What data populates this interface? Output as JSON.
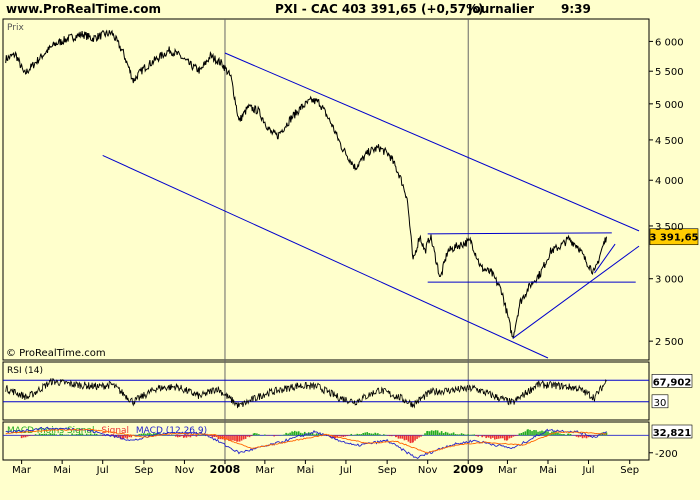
{
  "header": {
    "site": "www.ProRealTime.com",
    "instrument": "PXI - CAC 40",
    "quote": "3 391,65 (+0,57%)",
    "period": "Journalier",
    "time": "9:39"
  },
  "panels": {
    "price_label": "Prix",
    "watermark": "© ProRealTime.com",
    "rsi_label": "RSI (14)",
    "macd_label": "MACD moins Signal",
    "macd_signal_label": "Signal",
    "macd_line_label": "MACD (12,26,9)"
  },
  "colors": {
    "background": "#ffffcc",
    "price": "#000000",
    "trendline": "#0000cc",
    "rsi": "#000000",
    "rsi_levels": "#0000cc",
    "macd_pos": "#22aa22",
    "macd_neg": "#ee3333",
    "macd_line": "#2222cc",
    "signal_line": "#ff6600",
    "last_value_box": "#ffcc00"
  },
  "chart_data": [
    {
      "type": "line",
      "title": "PXI - CAC 40",
      "ylabel": "Prix",
      "yscale": "log",
      "ylim": [
        2380,
        6350
      ],
      "yticks": [
        "6 000",
        "5 500",
        "5 000",
        "4 500",
        "4 000",
        "3 500",
        "3 000",
        "2 500"
      ],
      "ytick_values": [
        6000,
        5500,
        5000,
        4500,
        4000,
        3500,
        3000,
        2500
      ],
      "xticks": [
        "Mar",
        "Mai",
        "Jul",
        "Sep",
        "Nov",
        "2008",
        "Mar",
        "Mai",
        "Jul",
        "Sep",
        "Nov",
        "2009",
        "Mar",
        "Mai",
        "Jul",
        "Sep"
      ],
      "xtick_dates": [
        "2007-03-01",
        "2007-05-01",
        "2007-07-01",
        "2007-09-01",
        "2007-11-01",
        "2008-01-01",
        "2008-03-01",
        "2008-05-01",
        "2008-07-01",
        "2008-09-01",
        "2008-11-01",
        "2009-01-01",
        "2009-03-01",
        "2009-05-01",
        "2009-07-01",
        "2009-09-01"
      ],
      "last_value": "3 391,65",
      "series": [
        {
          "values": [
            [
              "2007-02-05",
              5700
            ],
            [
              "2007-02-20",
              5780
            ],
            [
              "2007-03-05",
              5450
            ],
            [
              "2007-03-20",
              5620
            ],
            [
              "2007-04-05",
              5800
            ],
            [
              "2007-04-20",
              5950
            ],
            [
              "2007-05-10",
              6050
            ],
            [
              "2007-06-01",
              6130
            ],
            [
              "2007-06-15",
              6050
            ],
            [
              "2007-07-02",
              6120
            ],
            [
              "2007-07-15",
              6150
            ],
            [
              "2007-08-01",
              5800
            ],
            [
              "2007-08-16",
              5350
            ],
            [
              "2007-09-01",
              5550
            ],
            [
              "2007-09-20",
              5700
            ],
            [
              "2007-10-10",
              5850
            ],
            [
              "2007-10-25",
              5750
            ],
            [
              "2007-11-10",
              5600
            ],
            [
              "2007-11-25",
              5500
            ],
            [
              "2007-12-10",
              5750
            ],
            [
              "2007-12-28",
              5620
            ],
            [
              "2008-01-10",
              5400
            ],
            [
              "2008-01-22",
              4750
            ],
            [
              "2008-02-05",
              4950
            ],
            [
              "2008-02-20",
              4900
            ],
            [
              "2008-03-10",
              4600
            ],
            [
              "2008-03-20",
              4550
            ],
            [
              "2008-04-10",
              4800
            ],
            [
              "2008-04-25",
              4950
            ],
            [
              "2008-05-10",
              5050
            ],
            [
              "2008-05-22",
              5020
            ],
            [
              "2008-06-10",
              4700
            ],
            [
              "2008-06-25",
              4400
            ],
            [
              "2008-07-15",
              4150
            ],
            [
              "2008-08-05",
              4350
            ],
            [
              "2008-08-20",
              4400
            ],
            [
              "2008-09-05",
              4300
            ],
            [
              "2008-09-20",
              4050
            ],
            [
              "2008-10-01",
              3800
            ],
            [
              "2008-10-10",
              3150
            ],
            [
              "2008-10-20",
              3400
            ],
            [
              "2008-10-28",
              3250
            ],
            [
              "2008-11-05",
              3400
            ],
            [
              "2008-11-20",
              3000
            ],
            [
              "2008-12-01",
              3250
            ],
            [
              "2008-12-15",
              3300
            ],
            [
              "2009-01-05",
              3350
            ],
            [
              "2009-01-20",
              3100
            ],
            [
              "2009-02-05",
              3050
            ],
            [
              "2009-02-20",
              2900
            ],
            [
              "2009-03-09",
              2520
            ],
            [
              "2009-03-20",
              2800
            ],
            [
              "2009-04-05",
              2950
            ],
            [
              "2009-04-20",
              3050
            ],
            [
              "2009-05-05",
              3250
            ],
            [
              "2009-05-20",
              3300
            ],
            [
              "2009-06-01",
              3370
            ],
            [
              "2009-06-15",
              3300
            ],
            [
              "2009-06-25",
              3180
            ],
            [
              "2009-07-10",
              3050
            ],
            [
              "2009-07-20",
              3250
            ],
            [
              "2009-07-28",
              3391.65
            ]
          ]
        }
      ],
      "trendlines": [
        {
          "from": [
            "2008-01-01",
            5800
          ],
          "to": [
            "2009-09-15",
            3450
          ]
        },
        {
          "from": [
            "2007-07-01",
            4300
          ],
          "to": [
            "2009-05-01",
            2380
          ]
        },
        {
          "from": [
            "2008-11-01",
            3420
          ],
          "to": [
            "2009-08-05",
            3430
          ]
        },
        {
          "from": [
            "2008-11-01",
            2970
          ],
          "to": [
            "2009-09-10",
            2970
          ]
        },
        {
          "from": [
            "2009-03-09",
            2520
          ],
          "to": [
            "2009-09-15",
            3300
          ]
        },
        {
          "from": [
            "2009-07-10",
            3050
          ],
          "to": [
            "2009-08-10",
            3320
          ]
        }
      ]
    },
    {
      "type": "line",
      "title": "RSI (14)",
      "ylim": [
        0,
        100
      ],
      "levels": [
        70,
        30
      ],
      "level_labels": [
        "",
        "30"
      ],
      "last_value": "67,902",
      "series": [
        {
          "values": [
            [
              "2007-02-05",
              55
            ],
            [
              "2007-03-10",
              38
            ],
            [
              "2007-04-15",
              68
            ],
            [
              "2007-05-20",
              62
            ],
            [
              "2007-06-25",
              58
            ],
            [
              "2007-07-15",
              62
            ],
            [
              "2007-08-16",
              30
            ],
            [
              "2007-09-20",
              55
            ],
            [
              "2007-10-20",
              58
            ],
            [
              "2007-11-25",
              40
            ],
            [
              "2007-12-20",
              55
            ],
            [
              "2008-01-22",
              22
            ],
            [
              "2008-03-01",
              45
            ],
            [
              "2008-04-20",
              60
            ],
            [
              "2008-05-20",
              58
            ],
            [
              "2008-06-20",
              38
            ],
            [
              "2008-07-15",
              30
            ],
            [
              "2008-08-20",
              52
            ],
            [
              "2008-09-20",
              38
            ],
            [
              "2008-10-10",
              25
            ],
            [
              "2008-11-05",
              48
            ],
            [
              "2008-12-10",
              52
            ],
            [
              "2009-01-10",
              55
            ],
            [
              "2009-02-10",
              40
            ],
            [
              "2009-03-09",
              28
            ],
            [
              "2009-04-15",
              62
            ],
            [
              "2009-05-15",
              60
            ],
            [
              "2009-06-15",
              55
            ],
            [
              "2009-07-10",
              38
            ],
            [
              "2009-07-28",
              67.9
            ]
          ]
        }
      ]
    },
    {
      "type": "bar",
      "title": "MACD moins Signal",
      "ylim": [
        -260,
        130
      ],
      "yticks": [
        "-200"
      ],
      "ytick_values": [
        -200
      ],
      "last_value": "32,821",
      "histogram": [
        [
          "2007-03-01",
          -20
        ],
        [
          "2007-04-01",
          20
        ],
        [
          "2007-05-01",
          10
        ],
        [
          "2007-06-01",
          12
        ],
        [
          "2007-07-01",
          5
        ],
        [
          "2007-08-01",
          -40
        ],
        [
          "2007-09-01",
          20
        ],
        [
          "2007-10-01",
          18
        ],
        [
          "2007-11-01",
          -25
        ],
        [
          "2007-12-01",
          10
        ],
        [
          "2008-01-01",
          -50
        ],
        [
          "2008-01-20",
          -80
        ],
        [
          "2008-02-15",
          20
        ],
        [
          "2008-03-15",
          -10
        ],
        [
          "2008-04-15",
          40
        ],
        [
          "2008-05-15",
          20
        ],
        [
          "2008-06-15",
          -30
        ],
        [
          "2008-07-15",
          20
        ],
        [
          "2008-08-15",
          30
        ],
        [
          "2008-09-15",
          -20
        ],
        [
          "2008-10-10",
          -90
        ],
        [
          "2008-11-01",
          60
        ],
        [
          "2008-12-01",
          30
        ],
        [
          "2009-01-01",
          15
        ],
        [
          "2009-02-01",
          -30
        ],
        [
          "2009-03-01",
          -50
        ],
        [
          "2009-04-01",
          60
        ],
        [
          "2009-05-01",
          40
        ],
        [
          "2009-06-01",
          10
        ],
        [
          "2009-06-25",
          -30
        ],
        [
          "2009-07-28",
          32.8
        ]
      ],
      "series": [
        {
          "name": "MACD (12,26,9)",
          "values": [
            [
              "2007-02-05",
              30
            ],
            [
              "2007-04-01",
              80
            ],
            [
              "2007-06-01",
              70
            ],
            [
              "2007-08-16",
              -60
            ],
            [
              "2007-10-01",
              30
            ],
            [
              "2007-12-01",
              20
            ],
            [
              "2008-01-22",
              -200
            ],
            [
              "2008-03-15",
              -100
            ],
            [
              "2008-05-15",
              40
            ],
            [
              "2008-07-15",
              -120
            ],
            [
              "2008-09-01",
              -60
            ],
            [
              "2008-10-15",
              -260
            ],
            [
              "2008-12-01",
              -120
            ],
            [
              "2009-01-10",
              -60
            ],
            [
              "2009-03-09",
              -150
            ],
            [
              "2009-05-01",
              60
            ],
            [
              "2009-06-15",
              40
            ],
            [
              "2009-07-10",
              -20
            ],
            [
              "2009-07-28",
              45
            ]
          ]
        },
        {
          "name": "Signal",
          "values": [
            [
              "2007-02-05",
              20
            ],
            [
              "2007-04-15",
              60
            ],
            [
              "2007-06-15",
              65
            ],
            [
              "2007-09-01",
              -20
            ],
            [
              "2007-10-15",
              20
            ],
            [
              "2007-12-15",
              10
            ],
            [
              "2008-02-10",
              -150
            ],
            [
              "2008-04-01",
              -80
            ],
            [
              "2008-06-01",
              10
            ],
            [
              "2008-08-01",
              -90
            ],
            [
              "2008-09-15",
              -70
            ],
            [
              "2008-11-01",
              -200
            ],
            [
              "2008-12-15",
              -110
            ],
            [
              "2009-01-25",
              -80
            ],
            [
              "2009-03-25",
              -110
            ],
            [
              "2009-05-15",
              40
            ],
            [
              "2009-07-01",
              30
            ],
            [
              "2009-07-28",
              12
            ]
          ]
        }
      ]
    }
  ]
}
